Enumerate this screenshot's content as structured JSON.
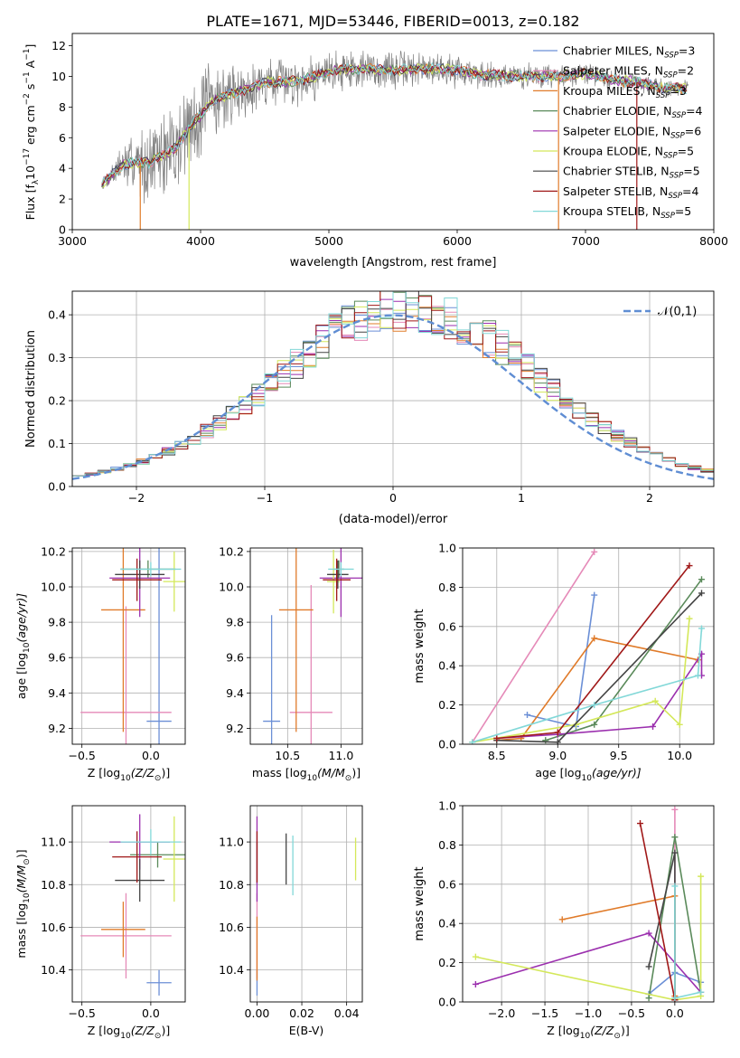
{
  "title": "PLATE=1671, MJD=53446, FIBERID=0013, z=0.182",
  "colors": {
    "chabrier_miles": "#6b8fd6",
    "salpeter_miles": "#e58ab8",
    "kroupa_miles": "#e07b2a",
    "chabrier_elodie": "#5a8a5a",
    "salpeter_elodie": "#9b2fae",
    "kroupa_elodie": "#d4e85a",
    "chabrier_stelib": "#444444",
    "salpeter_stelib": "#a01818",
    "kroupa_stelib": "#82d8d8",
    "data": "#808080",
    "normal": "#5f8dd3"
  },
  "chart_data": [
    {
      "id": "spectrum",
      "type": "line",
      "title": "PLATE=1671, MJD=53446, FIBERID=0013, z=0.182",
      "xlabel": "wavelength [Angstrom, rest frame]",
      "ylabel_parts": [
        "Flux [f",
        "λ",
        "10",
        "−17",
        " erg cm",
        "−2",
        " s",
        "−1",
        " A",
        "−1",
        "]"
      ],
      "xlim": [
        3000,
        8000
      ],
      "ylim": [
        0,
        12.8
      ],
      "xticks": [
        3000,
        4000,
        5000,
        6000,
        7000,
        8000
      ],
      "yticks": [
        0,
        2,
        4,
        6,
        8,
        10,
        12
      ],
      "legend": [
        {
          "name": "Chabrier MILES",
          "n": "3",
          "color": "#6b8fd6"
        },
        {
          "name": "Salpeter MILES",
          "n": "2",
          "color": "#e58ab8"
        },
        {
          "name": "Kroupa MILES",
          "n": "3",
          "color": "#e07b2a"
        },
        {
          "name": "Chabrier ELODIE",
          "n": "4",
          "color": "#5a8a5a"
        },
        {
          "name": "Salpeter ELODIE",
          "n": "6",
          "color": "#9b2fae"
        },
        {
          "name": "Kroupa ELODIE",
          "n": "5",
          "color": "#d4e85a"
        },
        {
          "name": "Chabrier STELIB",
          "n": "5",
          "color": "#444444"
        },
        {
          "name": "Salpeter STELIB",
          "n": "4",
          "color": "#a01818"
        },
        {
          "name": "Kroupa STELIB",
          "n": "5",
          "color": "#82d8d8"
        }
      ],
      "legend_sub": "SSP",
      "legend_prefix": "N",
      "continuum": {
        "wavelength": [
          3230,
          3400,
          3600,
          3800,
          3900,
          4000,
          4100,
          4300,
          4500,
          4700,
          4900,
          5100,
          5300,
          5500,
          5800,
          6000,
          6200,
          6500,
          6800,
          7000,
          7200,
          7400,
          7600,
          7800
        ],
        "flux": [
          3.0,
          4.3,
          4.4,
          5.3,
          6.5,
          7.5,
          8.5,
          9.0,
          9.6,
          9.7,
          10.0,
          10.5,
          10.5,
          10.4,
          10.5,
          10.4,
          10.1,
          10.0,
          10.0,
          10.2,
          9.8,
          9.6,
          9.3,
          9.2
        ]
      },
      "noise_amplitude": [
        [
          3230,
          0.4
        ],
        [
          3500,
          2.5
        ],
        [
          3900,
          4.0
        ],
        [
          4300,
          2.0
        ],
        [
          5300,
          1.6
        ],
        [
          6500,
          1.0
        ],
        [
          7800,
          0.6
        ]
      ]
    },
    {
      "id": "residuals",
      "type": "histogram",
      "xlabel": "(data-model)/error",
      "ylabel": "Normed distribution",
      "xlim": [
        -2.5,
        2.5
      ],
      "ylim": [
        0,
        0.455
      ],
      "xticks": [
        -2,
        -1,
        0,
        1,
        2
      ],
      "yticks": [
        0.0,
        0.1,
        0.2,
        0.3,
        0.4
      ],
      "legend": [
        {
          "label": "𝒩(0,1)",
          "style": "dashed",
          "color": "#5f8dd3"
        }
      ],
      "bin_width": 0.1,
      "model_count": 9
    },
    {
      "id": "age-vs-Z",
      "type": "errorbar",
      "xlabel_parts": [
        "Z [log",
        "10",
        "(Z/Z",
        "⊙",
        ")]"
      ],
      "ylabel_parts": [
        "age  [log",
        "10",
        "(age/yr)]"
      ],
      "xlim": [
        -0.57,
        0.25
      ],
      "ylim": [
        9.11,
        10.22
      ],
      "xticks": [
        -0.5,
        0.0
      ],
      "yticks": [
        9.2,
        9.4,
        9.6,
        9.8,
        10.0,
        10.2
      ],
      "points": [
        {
          "model": "Chabrier MILES",
          "x": 0.06,
          "xerr": 0.09,
          "y": 9.24,
          "yerr": 0.98,
          "color": "#6b8fd6"
        },
        {
          "model": "Salpeter MILES",
          "x": -0.18,
          "xerr": 0.33,
          "y": 9.29,
          "yerr": 0.6,
          "color": "#e58ab8"
        },
        {
          "model": "Kroupa MILES",
          "x": -0.2,
          "xerr": 0.16,
          "y": 9.87,
          "yerr": 0.69,
          "color": "#e07b2a"
        },
        {
          "model": "Chabrier ELODIE",
          "x": -0.02,
          "xerr": 0.2,
          "y": 10.1,
          "yerr": 0.05,
          "color": "#5a8a5a"
        },
        {
          "model": "Salpeter ELODIE",
          "x": -0.08,
          "xerr": 0.22,
          "y": 10.05,
          "yerr": 0.22,
          "color": "#9b2fae"
        },
        {
          "model": "Kroupa ELODIE",
          "x": 0.17,
          "xerr": 0.08,
          "y": 10.03,
          "yerr": 0.17,
          "color": "#d4e85a"
        },
        {
          "model": "Chabrier STELIB",
          "x": -0.08,
          "xerr": 0.18,
          "y": 10.07,
          "yerr": 0.08,
          "color": "#444444"
        },
        {
          "model": "Salpeter STELIB",
          "x": -0.1,
          "xerr": 0.18,
          "y": 10.04,
          "yerr": 0.12,
          "color": "#a01818"
        },
        {
          "model": "Kroupa STELIB",
          "x": 0.0,
          "xerr": 0.22,
          "y": 10.1,
          "yerr": 0.04,
          "color": "#82d8d8"
        }
      ]
    },
    {
      "id": "age-vs-mass",
      "type": "errorbar",
      "xlabel_parts": [
        "mass [log",
        "10",
        "(M/M",
        "⊙",
        ")]"
      ],
      "xlim": [
        10.15,
        11.2
      ],
      "ylim": [
        9.11,
        10.22
      ],
      "xticks": [
        10.5,
        11.0
      ],
      "yticks": [
        9.2,
        9.4,
        9.6,
        9.8,
        10.0,
        10.2
      ],
      "points": [
        {
          "model": "Chabrier MILES",
          "x": 10.35,
          "xerr": 0.08,
          "y": 9.24,
          "yerr": 0.6,
          "color": "#6b8fd6"
        },
        {
          "model": "Salpeter MILES",
          "x": 10.72,
          "xerr": 0.2,
          "y": 9.29,
          "yerr": 0.72,
          "color": "#e58ab8"
        },
        {
          "model": "Kroupa MILES",
          "x": 10.58,
          "xerr": 0.16,
          "y": 9.87,
          "yerr": 0.69,
          "color": "#e07b2a"
        },
        {
          "model": "Chabrier ELODIE",
          "x": 10.98,
          "xerr": 0.05,
          "y": 10.1,
          "yerr": 0.05,
          "color": "#5a8a5a"
        },
        {
          "model": "Salpeter ELODIE",
          "x": 11.0,
          "xerr": 0.2,
          "y": 10.05,
          "yerr": 0.22,
          "color": "#9b2fae"
        },
        {
          "model": "Kroupa ELODIE",
          "x": 10.93,
          "xerr": 0.06,
          "y": 10.03,
          "yerr": 0.18,
          "color": "#d4e85a"
        },
        {
          "model": "Chabrier STELIB",
          "x": 10.97,
          "xerr": 0.1,
          "y": 10.07,
          "yerr": 0.08,
          "color": "#444444"
        },
        {
          "model": "Salpeter STELIB",
          "x": 10.96,
          "xerr": 0.13,
          "y": 10.04,
          "yerr": 0.12,
          "color": "#a01818"
        },
        {
          "model": "Kroupa STELIB",
          "x": 11.0,
          "xerr": 0.12,
          "y": 10.1,
          "yerr": 0.04,
          "color": "#82d8d8"
        }
      ]
    },
    {
      "id": "mass-weight-vs-age",
      "type": "line",
      "xlabel_parts": [
        "age  [log",
        "10",
        "(age/yr)]"
      ],
      "ylabel": "mass weight",
      "xlim": [
        8.22,
        10.28
      ],
      "ylim": [
        0,
        1.0
      ],
      "xticks": [
        8.5,
        9.0,
        9.5,
        10.0
      ],
      "yticks": [
        0.0,
        0.2,
        0.4,
        0.6,
        0.8,
        1.0
      ],
      "series": [
        {
          "model": "Chabrier MILES",
          "color": "#6b8fd6",
          "x": [
            8.75,
            9.15,
            9.3
          ],
          "y": [
            0.15,
            0.09,
            0.76
          ]
        },
        {
          "model": "Salpeter MILES",
          "color": "#e58ab8",
          "x": [
            8.3,
            9.3
          ],
          "y": [
            0.01,
            0.98
          ]
        },
        {
          "model": "Kroupa MILES",
          "color": "#e07b2a",
          "x": [
            8.5,
            8.7,
            9.3,
            10.15
          ],
          "y": [
            0.02,
            0.03,
            0.54,
            0.43
          ]
        },
        {
          "model": "Chabrier ELODIE",
          "color": "#5a8a5a",
          "x": [
            8.9,
            9.3,
            10.18
          ],
          "y": [
            0.02,
            0.1,
            0.84
          ]
        },
        {
          "model": "Salpeter ELODIE",
          "color": "#9b2fae",
          "x": [
            8.5,
            9.0,
            9.78,
            10.18,
            10.18
          ],
          "y": [
            0.03,
            0.05,
            0.09,
            0.46,
            0.35
          ]
        },
        {
          "model": "Kroupa ELODIE",
          "color": "#d4e85a",
          "x": [
            8.3,
            9.15,
            9.8,
            10.0,
            10.08
          ],
          "y": [
            0.01,
            0.1,
            0.22,
            0.1,
            0.64
          ]
        },
        {
          "model": "Chabrier STELIB",
          "color": "#444444",
          "x": [
            8.5,
            9.0,
            10.18
          ],
          "y": [
            0.02,
            0.01,
            0.77
          ]
        },
        {
          "model": "Salpeter STELIB",
          "color": "#a01818",
          "x": [
            8.5,
            9.0,
            10.08
          ],
          "y": [
            0.03,
            0.06,
            0.91
          ]
        },
        {
          "model": "Kroupa STELIB",
          "color": "#82d8d8",
          "x": [
            8.3,
            9.3,
            10.15,
            10.18
          ],
          "y": [
            0.01,
            0.2,
            0.35,
            0.59
          ]
        }
      ]
    },
    {
      "id": "mass-vs-Z",
      "type": "errorbar",
      "xlabel_parts": [
        "Z [log",
        "10",
        "(Z/Z",
        "⊙",
        ")]"
      ],
      "ylabel_parts": [
        "mass [log",
        "10",
        "(M/M",
        "⊙",
        ")]"
      ],
      "xlim": [
        -0.57,
        0.25
      ],
      "ylim": [
        10.25,
        11.17
      ],
      "xticks": [
        -0.5,
        0.0
      ],
      "yticks": [
        10.4,
        10.6,
        10.8,
        11.0
      ],
      "points": [
        {
          "model": "Chabrier MILES",
          "x": 0.06,
          "xerr": 0.09,
          "y": 10.34,
          "yerr": 0.06,
          "color": "#6b8fd6"
        },
        {
          "model": "Salpeter MILES",
          "x": -0.18,
          "xerr": 0.33,
          "y": 10.56,
          "yerr": 0.2,
          "color": "#e58ab8"
        },
        {
          "model": "Kroupa MILES",
          "x": -0.2,
          "xerr": 0.16,
          "y": 10.59,
          "yerr": 0.13,
          "color": "#e07b2a"
        },
        {
          "model": "Chabrier ELODIE",
          "x": 0.05,
          "xerr": 0.2,
          "y": 10.94,
          "yerr": 0.06,
          "color": "#5a8a5a"
        },
        {
          "model": "Salpeter ELODIE",
          "x": -0.08,
          "xerr": 0.22,
          "y": 11.0,
          "yerr": 0.13,
          "color": "#9b2fae"
        },
        {
          "model": "Kroupa ELODIE",
          "x": 0.17,
          "xerr": 0.08,
          "y": 10.92,
          "yerr": 0.2,
          "color": "#d4e85a"
        },
        {
          "model": "Chabrier STELIB",
          "x": -0.08,
          "xerr": 0.18,
          "y": 10.82,
          "yerr": 0.1,
          "color": "#444444"
        },
        {
          "model": "Salpeter STELIB",
          "x": -0.1,
          "xerr": 0.18,
          "y": 10.93,
          "yerr": 0.12,
          "color": "#a01818"
        },
        {
          "model": "Kroupa STELIB",
          "x": 0.0,
          "xerr": 0.22,
          "y": 11.0,
          "yerr": 0.06,
          "color": "#82d8d8"
        }
      ]
    },
    {
      "id": "mass-vs-EBV",
      "type": "errorbar",
      "xlabel": "E(B-V)",
      "xlim": [
        -0.003,
        0.047
      ],
      "ylim": [
        10.25,
        11.17
      ],
      "xticks": [
        0.0,
        0.02,
        0.04
      ],
      "yticks": [
        10.4,
        10.6,
        10.8,
        11.0
      ],
      "points": [
        {
          "model": "Chabrier MILES",
          "x": 0.0,
          "y": 10.34,
          "yerr": 0.06,
          "color": "#6b8fd6"
        },
        {
          "model": "Salpeter MILES",
          "x": 0.0,
          "y": 10.56,
          "yerr": 0.2,
          "color": "#e58ab8"
        },
        {
          "model": "Kroupa MILES",
          "x": 0.0,
          "y": 10.5,
          "yerr": 0.15,
          "color": "#e07b2a"
        },
        {
          "model": "Chabrier ELODIE",
          "x": 0.0,
          "y": 10.9,
          "yerr": 0.1,
          "color": "#5a8a5a"
        },
        {
          "model": "Salpeter ELODIE",
          "x": 0.0,
          "y": 10.92,
          "yerr": 0.2,
          "color": "#9b2fae"
        },
        {
          "model": "Kroupa ELODIE",
          "x": 0.044,
          "y": 10.92,
          "yerr": 0.1,
          "color": "#d4e85a"
        },
        {
          "model": "Chabrier STELIB",
          "x": 0.013,
          "y": 10.92,
          "yerr": 0.12,
          "color": "#444444"
        },
        {
          "model": "Salpeter STELIB",
          "x": 0.0,
          "y": 10.93,
          "yerr": 0.12,
          "color": "#a01818"
        },
        {
          "model": "Kroupa STELIB",
          "x": 0.016,
          "y": 10.89,
          "yerr": 0.14,
          "color": "#82d8d8"
        }
      ]
    },
    {
      "id": "mass-weight-vs-Z",
      "type": "line",
      "xlabel_parts": [
        "Z [log",
        "10",
        "(Z/Z",
        "⊙",
        ")]"
      ],
      "ylabel": "mass weight",
      "xlim": [
        -2.45,
        0.45
      ],
      "ylim": [
        0,
        1.0
      ],
      "xticks": [
        -2.0,
        -1.5,
        -1.0,
        -0.5,
        0.0
      ],
      "yticks": [
        0.0,
        0.2,
        0.4,
        0.6,
        0.8,
        1.0
      ],
      "series": [
        {
          "model": "Chabrier MILES",
          "color": "#6b8fd6",
          "x": [
            -0.3,
            0.0,
            0.3
          ],
          "y": [
            0.04,
            0.15,
            0.1
          ]
        },
        {
          "model": "Salpeter MILES",
          "color": "#e58ab8",
          "x": [
            0.0,
            0.0
          ],
          "y": [
            0.01,
            0.98
          ]
        },
        {
          "model": "Kroupa MILES",
          "color": "#e07b2a",
          "x": [
            -1.3,
            0.0,
            0.0
          ],
          "y": [
            0.42,
            0.54,
            0.03
          ]
        },
        {
          "model": "Chabrier ELODIE",
          "color": "#5a8a5a",
          "x": [
            -0.3,
            0.0,
            0.3
          ],
          "y": [
            0.02,
            0.84,
            0.05
          ]
        },
        {
          "model": "Salpeter ELODIE",
          "color": "#9b2fae",
          "x": [
            -2.3,
            -0.3,
            0.3
          ],
          "y": [
            0.09,
            0.35,
            0.05
          ]
        },
        {
          "model": "Kroupa ELODIE",
          "color": "#d4e85a",
          "x": [
            -2.3,
            0.0,
            0.3,
            0.3
          ],
          "y": [
            0.23,
            0.01,
            0.03,
            0.64
          ]
        },
        {
          "model": "Chabrier STELIB",
          "color": "#444444",
          "x": [
            -0.3,
            0.0,
            0.0
          ],
          "y": [
            0.18,
            0.76,
            0.01
          ]
        },
        {
          "model": "Salpeter STELIB",
          "color": "#a01818",
          "x": [
            -0.4,
            0.0
          ],
          "y": [
            0.91,
            0.01
          ]
        },
        {
          "model": "Kroupa STELIB",
          "color": "#82d8d8",
          "x": [
            0.0,
            0.0,
            0.3
          ],
          "y": [
            0.59,
            0.02,
            0.05
          ]
        }
      ]
    }
  ]
}
